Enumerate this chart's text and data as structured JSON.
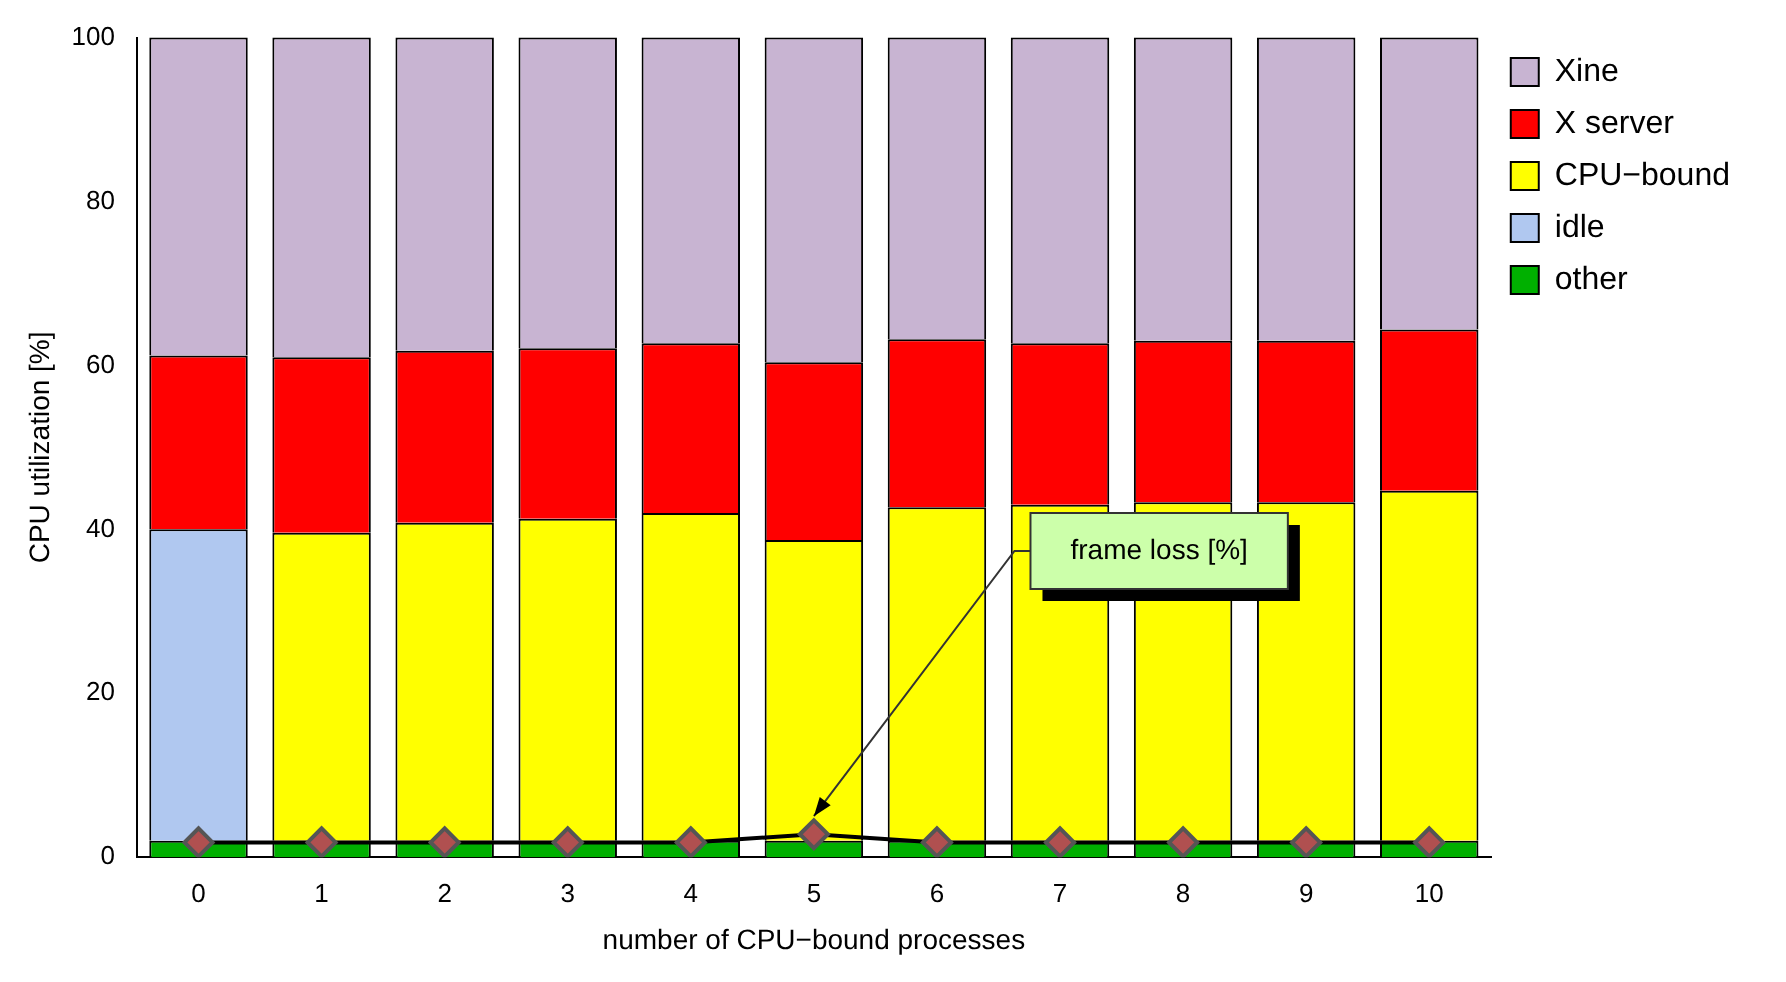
{
  "chart_data": {
    "type": "bar",
    "stacked": true,
    "xlabel": "number of CPU−bound processes",
    "ylabel": "CPU utilization [%]",
    "categories": [
      "0",
      "1",
      "2",
      "3",
      "4",
      "5",
      "6",
      "7",
      "8",
      "9",
      "10"
    ],
    "series": [
      {
        "name": "other",
        "color": "#00b000",
        "values": [
          2.0,
          2.0,
          2.0,
          2.0,
          2.0,
          2.0,
          2.0,
          2.0,
          2.0,
          2.0,
          2.0
        ]
      },
      {
        "name": "idle",
        "color": "#b0c8f0",
        "values": [
          38.0,
          null,
          null,
          null,
          null,
          null,
          null,
          null,
          null,
          null,
          null
        ]
      },
      {
        "name": "CPU−bound",
        "color": "#ffff00",
        "values": [
          null,
          37.6,
          38.8,
          39.3,
          40.0,
          36.7,
          40.7,
          41.0,
          41.3,
          41.3,
          42.7
        ]
      },
      {
        "name": "X server",
        "color": "#ff0000",
        "values": [
          21.2,
          21.4,
          21.0,
          20.8,
          20.7,
          21.7,
          20.5,
          19.7,
          19.7,
          19.7,
          19.7
        ]
      },
      {
        "name": "Xine",
        "color": "#c8b4d2",
        "values": [
          38.8,
          39.0,
          38.2,
          37.9,
          37.3,
          39.6,
          36.8,
          37.3,
          37.0,
          37.0,
          35.6
        ]
      },
      {
        "type": "line",
        "color": "#b05050",
        "marker": "diamond",
        "values": [
          1.8,
          1.8,
          1.8,
          1.8,
          1.8,
          2.8,
          1.8,
          1.8,
          1.8,
          1.8,
          1.8
        ]
      }
    ],
    "ylim": [
      0,
      100
    ],
    "yticks": [
      0,
      20,
      40,
      60,
      80,
      100
    ],
    "grid": false,
    "legend": "top right",
    "annotations": [
      "frame loss [%]"
    ]
  }
}
